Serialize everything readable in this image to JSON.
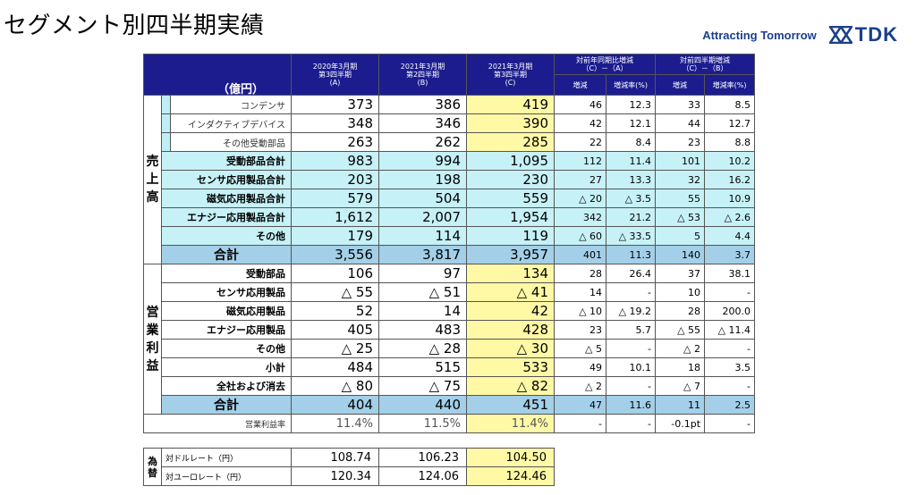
{
  "page_title": "セグメント別四半期実績",
  "brand": {
    "tagline": "Attracting Tomorrow",
    "logo_text": "TDK"
  },
  "headers": {
    "unit": "（億円）",
    "periods": [
      {
        "line1": "2020年3月期",
        "line2": "第3四半期",
        "line3": "(A)"
      },
      {
        "line1": "2021年3月期",
        "line2": "第2四半期",
        "line3": "(B)"
      },
      {
        "line1": "2021年3月期",
        "line2": "第3四半期",
        "line3": "(C)"
      }
    ],
    "yoy": {
      "line1": "対前年同期比増減",
      "line2": "（C）－（A）"
    },
    "qoq": {
      "line1": "対前四半期増減",
      "line2": "（C）－（B）"
    },
    "diff": "増減",
    "diff_pct": "増減率(%)"
  },
  "sales_label": "売上高",
  "op_label": "営業利益",
  "sales_rows": [
    {
      "label": "コンデンサ",
      "a": "373",
      "b": "386",
      "c": "419",
      "yd": "46",
      "yp": "12.3",
      "qd": "33",
      "qp": "8.5"
    },
    {
      "label": "インダクティブデバイス",
      "a": "348",
      "b": "346",
      "c": "390",
      "yd": "42",
      "yp": "12.1",
      "qd": "44",
      "qp": "12.7"
    },
    {
      "label": "その他受動部品",
      "a": "263",
      "b": "262",
      "c": "285",
      "yd": "22",
      "yp": "8.4",
      "qd": "23",
      "qp": "8.8"
    },
    {
      "label": "受動部品合計",
      "a": "983",
      "b": "994",
      "c": "1,095",
      "yd": "112",
      "yp": "11.4",
      "qd": "101",
      "qp": "10.2"
    },
    {
      "label": "センサ応用製品合計",
      "a": "203",
      "b": "198",
      "c": "230",
      "yd": "27",
      "yp": "13.3",
      "qd": "32",
      "qp": "16.2"
    },
    {
      "label": "磁気応用製品合計",
      "a": "579",
      "b": "504",
      "c": "559",
      "yd": "△ 20",
      "yp": "△ 3.5",
      "qd": "55",
      "qp": "10.9"
    },
    {
      "label": "エナジー応用製品合計",
      "a": "1,612",
      "b": "2,007",
      "c": "1,954",
      "yd": "342",
      "yp": "21.2",
      "qd": "△ 53",
      "qp": "△ 2.6"
    },
    {
      "label": "その他",
      "a": "179",
      "b": "114",
      "c": "119",
      "yd": "△ 60",
      "yp": "△ 33.5",
      "qd": "5",
      "qp": "4.4"
    }
  ],
  "sales_total": {
    "label": "合計",
    "a": "3,556",
    "b": "3,817",
    "c": "3,957",
    "yd": "401",
    "yp": "11.3",
    "qd": "140",
    "qp": "3.7"
  },
  "op_rows": [
    {
      "label": "受動部品",
      "a": "106",
      "b": "97",
      "c": "134",
      "yd": "28",
      "yp": "26.4",
      "qd": "37",
      "qp": "38.1"
    },
    {
      "label": "センサ応用製品",
      "a": "△ 55",
      "b": "△ 51",
      "c": "△ 41",
      "yd": "14",
      "yp": "-",
      "qd": "10",
      "qp": "-"
    },
    {
      "label": "磁気応用製品",
      "a": "52",
      "b": "14",
      "c": "42",
      "yd": "△ 10",
      "yp": "△ 19.2",
      "qd": "28",
      "qp": "200.0"
    },
    {
      "label": "エナジー応用製品",
      "a": "405",
      "b": "483",
      "c": "428",
      "yd": "23",
      "yp": "5.7",
      "qd": "△ 55",
      "qp": "△ 11.4"
    },
    {
      "label": "その他",
      "a": "△ 25",
      "b": "△ 28",
      "c": "△ 30",
      "yd": "△ 5",
      "yp": "-",
      "qd": "△ 2",
      "qp": "-"
    },
    {
      "label": "小計",
      "a": "484",
      "b": "515",
      "c": "533",
      "yd": "49",
      "yp": "10.1",
      "qd": "18",
      "qp": "3.5"
    },
    {
      "label": "全社および消去",
      "a": "△ 80",
      "b": "△ 75",
      "c": "△ 82",
      "yd": "△ 2",
      "yp": "-",
      "qd": "△ 7",
      "qp": "-"
    }
  ],
  "op_total": {
    "label": "合計",
    "a": "404",
    "b": "440",
    "c": "451",
    "yd": "47",
    "yp": "11.6",
    "qd": "11",
    "qp": "2.5"
  },
  "margin_row": {
    "label": "営業利益率",
    "a": "11.4%",
    "b": "11.5%",
    "c": "11.4%",
    "yd": "-",
    "yp": "-",
    "qd": "-0.1pt",
    "qp": "-"
  },
  "fx": {
    "label": "為替",
    "rows": [
      {
        "label": "対ドルレート（円）",
        "a": "108.74",
        "b": "106.23",
        "c": "104.50"
      },
      {
        "label": "対ユーロレート（円）",
        "a": "120.34",
        "b": "124.06",
        "c": "124.46"
      }
    ]
  }
}
